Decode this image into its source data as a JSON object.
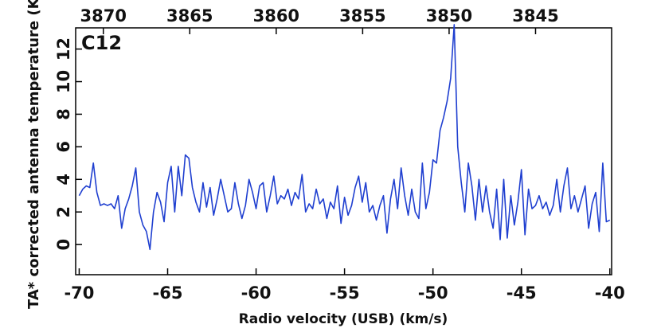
{
  "chart_data": {
    "type": "line",
    "annotation": "C12",
    "x_label": "Radio velocity (USB) (km/s)",
    "y_label": "TA* corrected antenna temperature (K)",
    "color": "#1f3fd0",
    "xlim": [
      -70.2,
      -39.9
    ],
    "xticks": [
      -70,
      -65,
      -60,
      -55,
      -50,
      -45,
      -40
    ],
    "x2lim": [
      3871.6,
      3840.6
    ],
    "x2ticks": [
      3870,
      3865,
      3860,
      3855,
      3850,
      3845
    ],
    "ylim": [
      -1.85,
      13.3
    ],
    "yticks": [
      0,
      2,
      4,
      6,
      8,
      10,
      12
    ],
    "x": [
      -70,
      -69.8,
      -69.6,
      -69.4,
      -69.2,
      -69,
      -68.8,
      -68.6,
      -68.4,
      -68.2,
      -68,
      -67.8,
      -67.6,
      -67.4,
      -67.2,
      -67,
      -66.8,
      -66.6,
      -66.4,
      -66.2,
      -66,
      -65.8,
      -65.6,
      -65.4,
      -65.2,
      -65,
      -64.8,
      -64.6,
      -64.4,
      -64.2,
      -64,
      -63.8,
      -63.6,
      -63.4,
      -63.2,
      -63,
      -62.8,
      -62.6,
      -62.4,
      -62.2,
      -62,
      -61.8,
      -61.6,
      -61.4,
      -61.2,
      -61,
      -60.8,
      -60.6,
      -60.4,
      -60.2,
      -60,
      -59.8,
      -59.6,
      -59.4,
      -59.2,
      -59,
      -58.8,
      -58.6,
      -58.4,
      -58.2,
      -58,
      -57.8,
      -57.6,
      -57.4,
      -57.2,
      -57,
      -56.8,
      -56.6,
      -56.4,
      -56.2,
      -56,
      -55.8,
      -55.6,
      -55.4,
      -55.2,
      -55,
      -54.8,
      -54.6,
      -54.4,
      -54.2,
      -54,
      -53.8,
      -53.6,
      -53.4,
      -53.2,
      -53,
      -52.8,
      -52.6,
      -52.4,
      -52.2,
      -52,
      -51.8,
      -51.6,
      -51.4,
      -51.2,
      -51,
      -50.8,
      -50.6,
      -50.4,
      -50.2,
      -50,
      -49.8,
      -49.6,
      -49.4,
      -49.2,
      -49,
      -48.8,
      -48.6,
      -48.4,
      -48.2,
      -48,
      -47.8,
      -47.6,
      -47.4,
      -47.2,
      -47,
      -46.8,
      -46.6,
      -46.4,
      -46.2,
      -46,
      -45.8,
      -45.6,
      -45.4,
      -45.2,
      -45,
      -44.8,
      -44.6,
      -44.4,
      -44.2,
      -44,
      -43.8,
      -43.6,
      -43.4,
      -43.2,
      -43,
      -42.8,
      -42.6,
      -42.4,
      -42.2,
      -42,
      -41.8,
      -41.6,
      -41.4,
      -41.2,
      -41,
      -40.8,
      -40.6,
      -40.4,
      -40.2,
      -40
    ],
    "values": [
      3.0,
      3.4,
      3.6,
      3.5,
      5.0,
      3.2,
      2.4,
      2.5,
      2.4,
      2.5,
      2.2,
      3.0,
      1.0,
      2.2,
      2.8,
      3.6,
      4.7,
      2.0,
      1.2,
      0.8,
      -0.3,
      2.0,
      3.2,
      2.6,
      1.4,
      3.8,
      4.8,
      2.0,
      4.8,
      3.0,
      5.5,
      5.3,
      3.5,
      2.6,
      2.0,
      3.8,
      2.3,
      3.5,
      1.8,
      2.8,
      4.0,
      3.0,
      2.0,
      2.2,
      3.8,
      2.5,
      1.6,
      2.4,
      4.0,
      3.2,
      2.2,
      3.6,
      3.8,
      2.0,
      3.0,
      4.2,
      2.5,
      3.0,
      2.8,
      3.4,
      2.4,
      3.2,
      2.8,
      4.3,
      2.0,
      2.5,
      2.2,
      3.4,
      2.5,
      2.8,
      1.6,
      2.6,
      2.2,
      3.6,
      1.3,
      2.9,
      1.8,
      2.4,
      3.5,
      4.2,
      2.6,
      3.8,
      2.0,
      2.4,
      1.5,
      2.4,
      3.0,
      0.7,
      2.8,
      4.0,
      2.2,
      4.7,
      3.0,
      1.8,
      3.4,
      2.0,
      1.6,
      5.0,
      2.2,
      3.2,
      5.2,
      5.0,
      7.0,
      7.8,
      8.8,
      10.2,
      13.5,
      6.0,
      3.8,
      2.0,
      5.0,
      3.6,
      1.5,
      4.0,
      2.0,
      3.6,
      2.0,
      1.0,
      3.4,
      0.3,
      4.0,
      0.4,
      3.0,
      1.2,
      2.6,
      4.6,
      0.6,
      3.4,
      2.2,
      2.4,
      3.0,
      2.2,
      2.6,
      1.8,
      2.4,
      4.0,
      2.0,
      3.6,
      4.7,
      2.2,
      3.0,
      2.0,
      2.8,
      3.6,
      1.0,
      2.5,
      3.2,
      0.8,
      5.0,
      1.4,
      1.5
    ]
  }
}
